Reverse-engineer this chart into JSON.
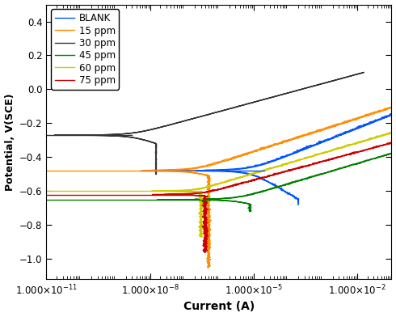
{
  "title": "",
  "xlabel": "Current (A)",
  "ylabel": "Potential, V(SCE)",
  "ylim": [
    -1.12,
    0.5
  ],
  "xlim": [
    1e-11,
    0.1
  ],
  "legend_labels": [
    "BLANK",
    "15 ppm",
    "30 ppm",
    "45 ppm",
    "60 ppm",
    "75 ppm"
  ],
  "colors": {
    "BLANK": "#0055FF",
    "15 ppm": "#FF8C00",
    "30 ppm": "#333333",
    "45 ppm": "#008000",
    "60 ppm": "#CCCC00",
    "75 ppm": "#CC0000"
  },
  "background_color": "#ffffff"
}
